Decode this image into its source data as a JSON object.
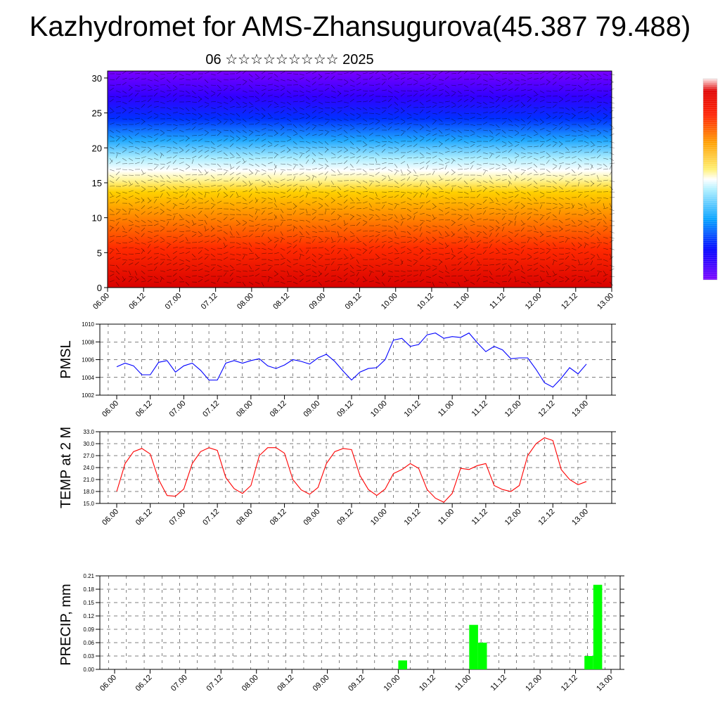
{
  "title": "Kazhydromet for AMS-Zhansugurova(45.387 79.488)",
  "subtitle": "06 ☆☆☆☆☆☆☆☆☆ 2025",
  "colors": {
    "pressure_line": "#0000ff",
    "temperature_line": "#ff0000",
    "precip_bar": "#00ff00",
    "gridline": "#000000"
  },
  "chart_data": [
    {
      "type": "heatmap",
      "description_label": "",
      "x_tick_labels": [
        "06.00",
        "06.12",
        "07.00",
        "07.12",
        "08.00",
        "08.12",
        "09.00",
        "09.12",
        "10.00",
        "10.12",
        "11.00",
        "11.12",
        "12.00",
        "12.12",
        "13.00"
      ],
      "y_tick_labels": [
        "0",
        "5",
        "10",
        "15",
        "20",
        "25",
        "30"
      ],
      "ylim": [
        0,
        31
      ],
      "colorbar": [
        "#7a00ff",
        "#3a00ff",
        "#0028ff",
        "#0088ff",
        "#00c8ff",
        "#9fe8ff",
        "#ffffff",
        "#fff07a",
        "#ffd000",
        "#ffa000",
        "#ff6000",
        "#ff2000",
        "#e00000"
      ],
      "wind_barbs": true
    },
    {
      "type": "line",
      "ylabel": "PMSL",
      "ylim": [
        1002,
        1010
      ],
      "y_ticks": [
        "1002",
        "1004",
        "1006",
        "1008",
        "1010"
      ],
      "x_tick_labels": [
        "06.00",
        "06.12",
        "07.00",
        "07.12",
        "08.00",
        "08.12",
        "09.00",
        "09.12",
        "10.00",
        "10.12",
        "11.00",
        "11.12",
        "12.00",
        "12.12",
        "13.00"
      ],
      "grid": true,
      "values": [
        1005.2,
        1005.6,
        1005.3,
        1004.3,
        1004.3,
        1005.7,
        1005.9,
        1004.6,
        1005.3,
        1005.6,
        1004.8,
        1003.7,
        1003.7,
        1005.6,
        1005.9,
        1005.6,
        1005.9,
        1006.1,
        1005.3,
        1005.0,
        1005.4,
        1006.0,
        1005.8,
        1005.5,
        1006.2,
        1006.6,
        1005.8,
        1004.7,
        1003.7,
        1004.6,
        1005.0,
        1005.1,
        1006.0,
        1008.2,
        1008.4,
        1007.5,
        1007.7,
        1008.8,
        1009.0,
        1008.4,
        1008.6,
        1008.5,
        1009.0,
        1007.9,
        1006.9,
        1007.5,
        1007.1,
        1006.1,
        1006.2,
        1006.2,
        1004.9,
        1003.4,
        1002.9,
        1003.9,
        1005.1,
        1004.4,
        1005.5
      ]
    },
    {
      "type": "line",
      "ylabel": "TEMP at 2 M",
      "ylim": [
        15,
        33
      ],
      "y_ticks": [
        "15.0",
        "18.0",
        "21.0",
        "24.0",
        "27.0",
        "30.0",
        "33.0"
      ],
      "x_tick_labels": [
        "06.00",
        "06.12",
        "07.00",
        "07.12",
        "08.00",
        "08.12",
        "09.00",
        "09.12",
        "10.00",
        "10.12",
        "11.00",
        "11.12",
        "12.00",
        "12.12",
        "13.00"
      ],
      "grid": true,
      "values": [
        18.0,
        25.0,
        28.0,
        28.8,
        27.4,
        21.0,
        17.0,
        16.8,
        18.6,
        25.0,
        28.0,
        29.0,
        28.3,
        21.5,
        18.7,
        17.5,
        19.5,
        27.0,
        29.0,
        29.0,
        27.6,
        21.0,
        18.4,
        17.3,
        19.0,
        25.0,
        28.0,
        28.8,
        28.5,
        22.0,
        18.5,
        17.0,
        18.6,
        22.5,
        23.5,
        25.0,
        23.8,
        18.5,
        16.3,
        15.3,
        17.5,
        23.8,
        23.5,
        24.5,
        25.0,
        19.5,
        18.5,
        18.0,
        19.5,
        27.0,
        30.0,
        31.5,
        30.8,
        23.5,
        21.0,
        19.7,
        20.5
      ]
    },
    {
      "type": "bar",
      "ylabel": "PRECIP, mm",
      "ylim": [
        0,
        0.21
      ],
      "y_ticks": [
        "0.00",
        "0.03",
        "0.06",
        "0.09",
        "0.12",
        "0.15",
        "0.18",
        "0.21"
      ],
      "x_tick_labels": [
        "06.00",
        "06.12",
        "07.00",
        "07.12",
        "08.00",
        "08.12",
        "09.00",
        "09.12",
        "10.00",
        "10.12",
        "11.00",
        "11.12",
        "12.00",
        "12.12",
        "13.00"
      ],
      "grid": true,
      "bars": [
        {
          "x_hour": 99,
          "value": 0.02
        },
        {
          "x_hour": 123,
          "value": 0.1
        },
        {
          "x_hour": 126,
          "value": 0.06
        },
        {
          "x_hour": 162,
          "value": 0.03
        },
        {
          "x_hour": 165,
          "value": 0.19
        }
      ]
    }
  ]
}
